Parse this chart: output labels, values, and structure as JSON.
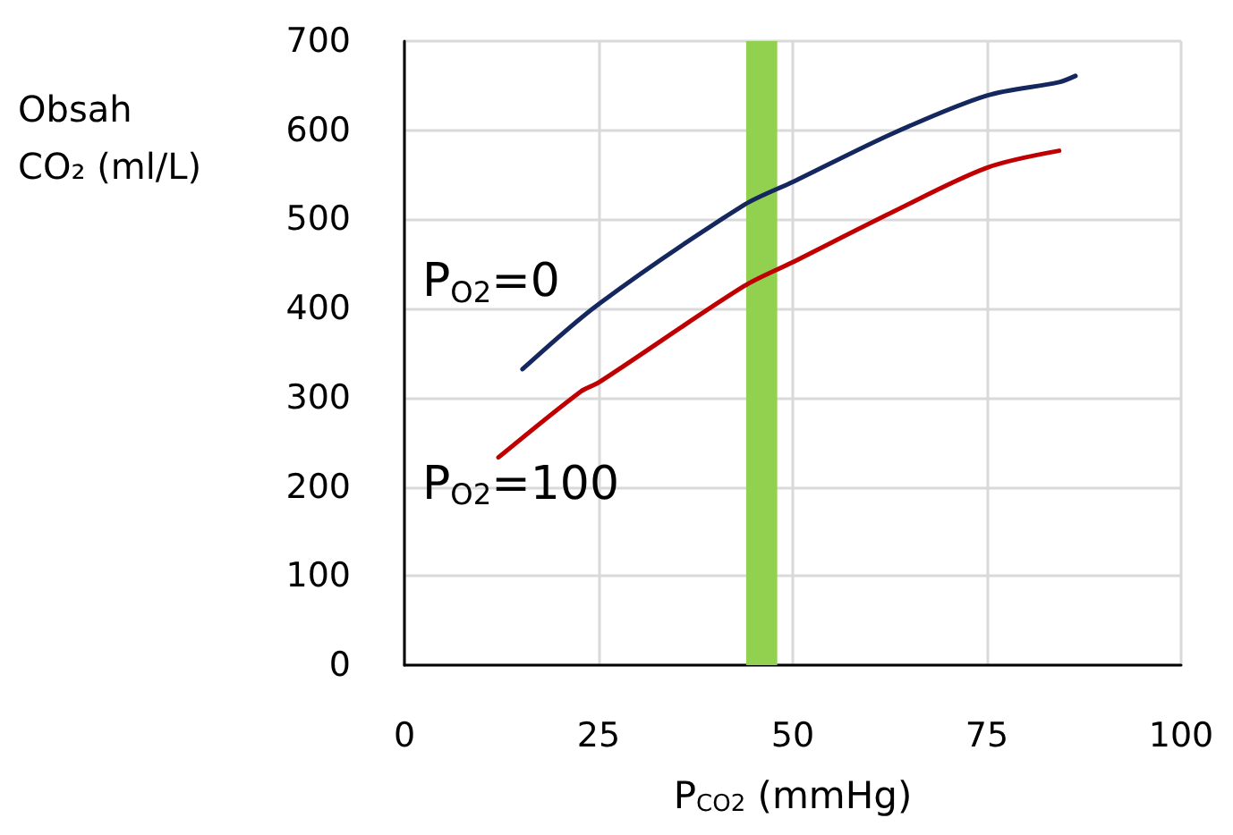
{
  "chart_data": {
    "type": "line",
    "xlabel": "P$_{CO2}$ (mmHg)",
    "ylabel": "Obsah\nCO₂ (ml/L)",
    "xlim": [
      0,
      100
    ],
    "xticks": [
      0,
      25,
      50,
      75,
      100
    ],
    "ylim": [
      0,
      700
    ],
    "yticks": [
      0,
      100,
      200,
      300,
      400,
      500,
      600,
      700
    ],
    "grid": true,
    "legend": false,
    "marker": "none",
    "line_style": "solid",
    "bands": [
      {
        "axis": "x",
        "from": 44,
        "to": 48,
        "color": "#92d050"
      }
    ],
    "series": [
      {
        "name": "P$_{O2}$=0",
        "color": "#14285f",
        "x": [
          15.2,
          25,
          43.7,
          50,
          63,
          75,
          84.3,
          86.4
        ],
        "values": [
          332,
          405,
          516,
          542,
          597,
          639,
          654,
          661
        ]
      },
      {
        "name": "P$_{O2}$=100",
        "color": "#c00000",
        "x": [
          12.1,
          22.7,
          25,
          43.7,
          50,
          63,
          75,
          84.3
        ],
        "values": [
          233,
          307,
          317,
          425,
          452,
          509,
          558,
          577
        ]
      }
    ]
  }
}
